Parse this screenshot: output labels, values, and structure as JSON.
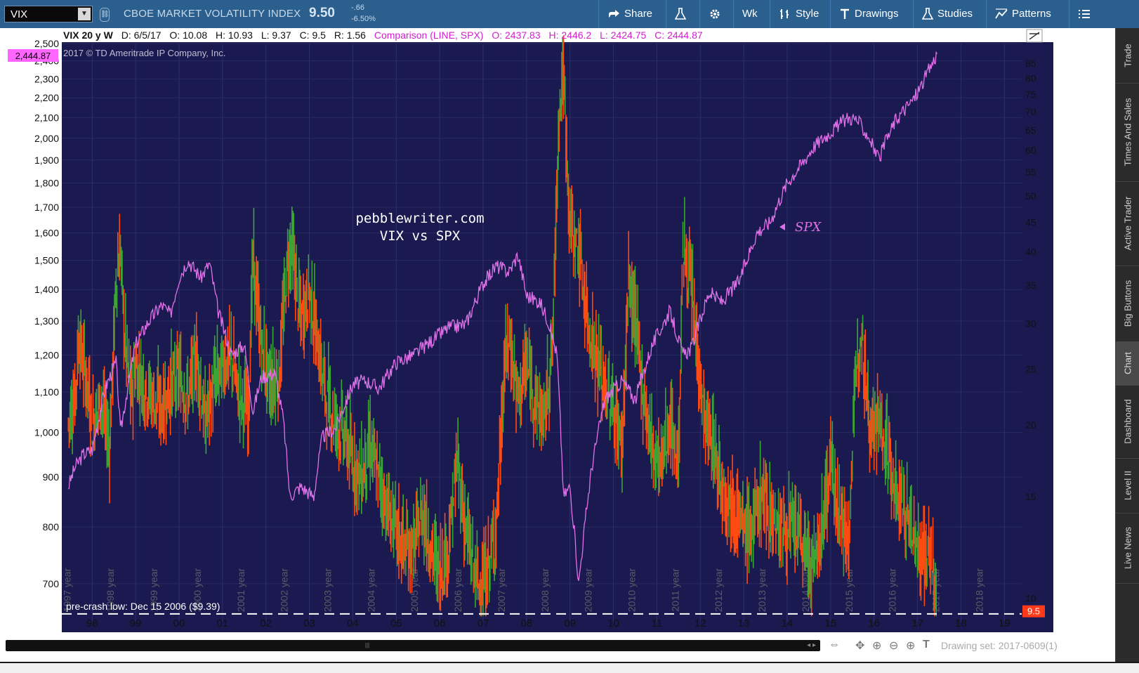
{
  "toolbar": {
    "symbol": "VIX",
    "instrument_name": "CBOE MARKET VOLATILITY INDEX",
    "last_price": "9.50",
    "net_change": "-.66",
    "pct_change": "-6.50%",
    "share_label": "Share",
    "aggregation_label": "Wk",
    "style_label": "Style",
    "drawings_label": "Drawings",
    "studies_label": "Studies",
    "patterns_label": "Patterns",
    "icons": {
      "share": "share-icon",
      "flask": "flask-icon",
      "settings": "gear-icon",
      "style": "style-icon",
      "drawings": "text-t-icon",
      "studies": "flask-icon",
      "patterns": "patterns-icon",
      "menu": "menu-icon"
    }
  },
  "sidebar": {
    "tabs": [
      "Trade",
      "Times And Sales",
      "Active Trader",
      "Big Buttons",
      "Chart",
      "Dashboard",
      "Level II",
      "Live News"
    ],
    "active": "Chart"
  },
  "chart_header": {
    "study": "VIX 20 y W",
    "date": "D: 6/5/17",
    "open": "O: 10.08",
    "high": "H: 10.93",
    "low": "L: 9.37",
    "close": "C: 9.5",
    "range": "R: 1.56",
    "comparison": "Comparison (LINE, SPX)",
    "cmp_open": "O: 2437.83",
    "cmp_high": "H: 2446.2",
    "cmp_low": "L: 2424.75",
    "cmp_close": "C: 2444.87",
    "copyright": "2017 © TD Ameritrade IP Company, Inc."
  },
  "footer": {
    "drawing_set": "Drawing set: 2017-0609(1)"
  },
  "colors": {
    "plot_bg": "#1a1a50",
    "spx_line": "#e070e8",
    "up": "#3aa535",
    "down": "#ff4a12",
    "price_tag": "#ff3a1a",
    "cmp_tag": "#ff66ff"
  },
  "chart_data": {
    "type": "line",
    "title": "",
    "annotation_title": [
      "pebblewriter.com",
      "VIX vs SPX"
    ],
    "spx_label": "SPX",
    "hline_label": "pre-crash low: Dec 15 2006 ($9.39)",
    "hline_value": 9.39,
    "current_vix_tag": "9.5",
    "current_spx_tag": "2,444.87",
    "x_range": [
      1997.3,
      2019.4
    ],
    "x_ticks": [
      {
        "x": 1998,
        "label": "98"
      },
      {
        "x": 1999,
        "label": "99"
      },
      {
        "x": 2000,
        "label": "00"
      },
      {
        "x": 2001,
        "label": "01"
      },
      {
        "x": 2002,
        "label": "02"
      },
      {
        "x": 2003,
        "label": "03"
      },
      {
        "x": 2004,
        "label": "04"
      },
      {
        "x": 2005,
        "label": "05"
      },
      {
        "x": 2006,
        "label": "06"
      },
      {
        "x": 2007,
        "label": "07"
      },
      {
        "x": 2008,
        "label": "08"
      },
      {
        "x": 2009,
        "label": "09"
      },
      {
        "x": 2010,
        "label": "10"
      },
      {
        "x": 2011,
        "label": "11"
      },
      {
        "x": 2012,
        "label": "12"
      },
      {
        "x": 2013,
        "label": "13"
      },
      {
        "x": 2014,
        "label": "14"
      },
      {
        "x": 2015,
        "label": "15"
      },
      {
        "x": 2016,
        "label": "16"
      },
      {
        "x": 2017,
        "label": "17"
      },
      {
        "x": 2018,
        "label": "18"
      },
      {
        "x": 2019,
        "label": "19"
      }
    ],
    "year_labels": [
      "1997 year",
      "1998 year",
      "1999 year",
      "2000 year",
      "2001 year",
      "2002 year",
      "2003 year",
      "2004 year",
      "2005 year",
      "2006 year",
      "2007 year",
      "2008 year",
      "2009 year",
      "2010 year",
      "2011 year",
      "2012 year",
      "2013 year",
      "2014 year",
      "2015 year",
      "2016 year",
      "2017 year",
      "2018 year"
    ],
    "left_axis": {
      "scale": "log",
      "range": [
        640,
        2500
      ],
      "ticks": [
        {
          "v": 700,
          "label": "700"
        },
        {
          "v": 800,
          "label": "800"
        },
        {
          "v": 900,
          "label": "900"
        },
        {
          "v": 1000,
          "label": "1,000"
        },
        {
          "v": 1100,
          "label": "1,100"
        },
        {
          "v": 1200,
          "label": "1,200"
        },
        {
          "v": 1300,
          "label": "1,300"
        },
        {
          "v": 1400,
          "label": "1,400"
        },
        {
          "v": 1500,
          "label": "1,500"
        },
        {
          "v": 1600,
          "label": "1,600"
        },
        {
          "v": 1700,
          "label": "1,700"
        },
        {
          "v": 1800,
          "label": "1,800"
        },
        {
          "v": 1900,
          "label": "1,900"
        },
        {
          "v": 2000,
          "label": "2,000"
        },
        {
          "v": 2100,
          "label": "2,100"
        },
        {
          "v": 2200,
          "label": "2,200"
        },
        {
          "v": 2300,
          "label": "2,300"
        },
        {
          "v": 2400,
          "label": "2,400"
        },
        {
          "v": 2500,
          "label": "2,500"
        }
      ]
    },
    "right_axis": {
      "scale": "log",
      "range": [
        9.1,
        92
      ],
      "ticks": [
        {
          "v": 10,
          "label": "10"
        },
        {
          "v": 15,
          "label": "15"
        },
        {
          "v": 20,
          "label": "20"
        },
        {
          "v": 25,
          "label": "25"
        },
        {
          "v": 30,
          "label": "30"
        },
        {
          "v": 35,
          "label": "35"
        },
        {
          "v": 40,
          "label": "40"
        },
        {
          "v": 45,
          "label": "45"
        },
        {
          "v": 50,
          "label": "50"
        },
        {
          "v": 55,
          "label": "55"
        },
        {
          "v": 60,
          "label": "60"
        },
        {
          "v": 65,
          "label": "65"
        },
        {
          "v": 70,
          "label": "70"
        },
        {
          "v": 75,
          "label": "75"
        },
        {
          "v": 80,
          "label": "80"
        },
        {
          "v": 85,
          "label": "85"
        }
      ]
    },
    "series": [
      {
        "name": "SPX",
        "axis": "left",
        "x": [
          1997.45,
          1997.6,
          1997.8,
          1998.0,
          1998.3,
          1998.55,
          1998.65,
          1998.8,
          1999.0,
          1999.3,
          1999.6,
          1999.8,
          2000.0,
          2000.2,
          2000.5,
          2000.7,
          2000.9,
          2001.2,
          2001.5,
          2001.7,
          2001.9,
          2002.2,
          2002.4,
          2002.55,
          2002.8,
          2003.1,
          2003.3,
          2003.6,
          2004.0,
          2004.3,
          2004.6,
          2005.0,
          2005.4,
          2005.8,
          2006.2,
          2006.6,
          2007.0,
          2007.3,
          2007.6,
          2007.8,
          2008.0,
          2008.3,
          2008.5,
          2008.7,
          2008.85,
          2009.0,
          2009.2,
          2009.5,
          2009.8,
          2010.2,
          2010.5,
          2010.9,
          2011.3,
          2011.6,
          2011.8,
          2012.2,
          2012.5,
          2012.9,
          2013.3,
          2013.6,
          2014.0,
          2014.4,
          2014.6,
          2015.0,
          2015.4,
          2015.6,
          2015.9,
          2016.1,
          2016.5,
          2016.9,
          2017.1,
          2017.45
        ],
        "values": [
          880,
          920,
          950,
          960,
          1110,
          1180,
          1000,
          1100,
          1230,
          1300,
          1350,
          1320,
          1440,
          1500,
          1440,
          1490,
          1330,
          1200,
          1230,
          1050,
          1140,
          1150,
          1030,
          860,
          880,
          860,
          990,
          1010,
          1120,
          1130,
          1110,
          1180,
          1200,
          1240,
          1280,
          1290,
          1420,
          1480,
          1460,
          1520,
          1380,
          1360,
          1300,
          1200,
          860,
          880,
          700,
          920,
          1080,
          1130,
          1080,
          1230,
          1330,
          1200,
          1220,
          1390,
          1360,
          1430,
          1600,
          1640,
          1800,
          1900,
          1960,
          2030,
          2100,
          2090,
          2000,
          1900,
          2090,
          2190,
          2270,
          2440
        ]
      },
      {
        "name": "VIX",
        "axis": "right",
        "type": "candles",
        "x": [
          1997.45,
          1997.6,
          1997.7,
          1997.8,
          1997.9,
          1998.0,
          1998.2,
          1998.4,
          1998.55,
          1998.65,
          1998.75,
          1998.9,
          1999.0,
          1999.2,
          1999.4,
          1999.6,
          1999.8,
          2000.0,
          2000.2,
          2000.4,
          2000.6,
          2000.8,
          2001.0,
          2001.2,
          2001.4,
          2001.6,
          2001.7,
          2001.9,
          2002.1,
          2002.3,
          2002.5,
          2002.6,
          2002.8,
          2003.0,
          2003.2,
          2003.4,
          2003.6,
          2003.8,
          2004.0,
          2004.2,
          2004.4,
          2004.6,
          2004.8,
          2005.0,
          2005.2,
          2005.4,
          2005.6,
          2005.8,
          2006.0,
          2006.2,
          2006.4,
          2006.6,
          2006.8,
          2006.96,
          2007.1,
          2007.3,
          2007.5,
          2007.6,
          2007.8,
          2008.0,
          2008.2,
          2008.4,
          2008.6,
          2008.75,
          2008.85,
          2009.0,
          2009.2,
          2009.4,
          2009.6,
          2009.8,
          2010.0,
          2010.2,
          2010.35,
          2010.5,
          2010.7,
          2010.9,
          2011.1,
          2011.3,
          2011.5,
          2011.6,
          2011.75,
          2011.9,
          2012.1,
          2012.3,
          2012.45,
          2012.6,
          2012.8,
          2013.0,
          2013.2,
          2013.4,
          2013.6,
          2013.8,
          2014.0,
          2014.2,
          2014.4,
          2014.6,
          2014.8,
          2015.0,
          2015.2,
          2015.4,
          2015.6,
          2015.7,
          2015.9,
          2016.1,
          2016.3,
          2016.5,
          2016.7,
          2016.9,
          2017.1,
          2017.3,
          2017.45
        ],
        "values": [
          20,
          22,
          28,
          25,
          23,
          20,
          22,
          18,
          35,
          40,
          28,
          22,
          25,
          23,
          22,
          21,
          23,
          24,
          22,
          26,
          20,
          23,
          25,
          26,
          22,
          21,
          38,
          27,
          23,
          24,
          38,
          40,
          30,
          34,
          27,
          22,
          20,
          19,
          17,
          16,
          18,
          16,
          14,
          13,
          12,
          12,
          14,
          12,
          11,
          12,
          17,
          13,
          11,
          10.2,
          11,
          13,
          25,
          28,
          22,
          25,
          22,
          20,
          27,
          70,
          80,
          44,
          40,
          30,
          26,
          23,
          21,
          18,
          35,
          30,
          22,
          18,
          17,
          20,
          17,
          40,
          36,
          28,
          20,
          18,
          16,
          15,
          14,
          13,
          13,
          15,
          14,
          13,
          13,
          13,
          12,
          11,
          13,
          17,
          14,
          12,
          25,
          30,
          20,
          20,
          18,
          15,
          14,
          13,
          11.5,
          12,
          9.5
        ]
      }
    ],
    "grid": true,
    "legend": "none"
  }
}
